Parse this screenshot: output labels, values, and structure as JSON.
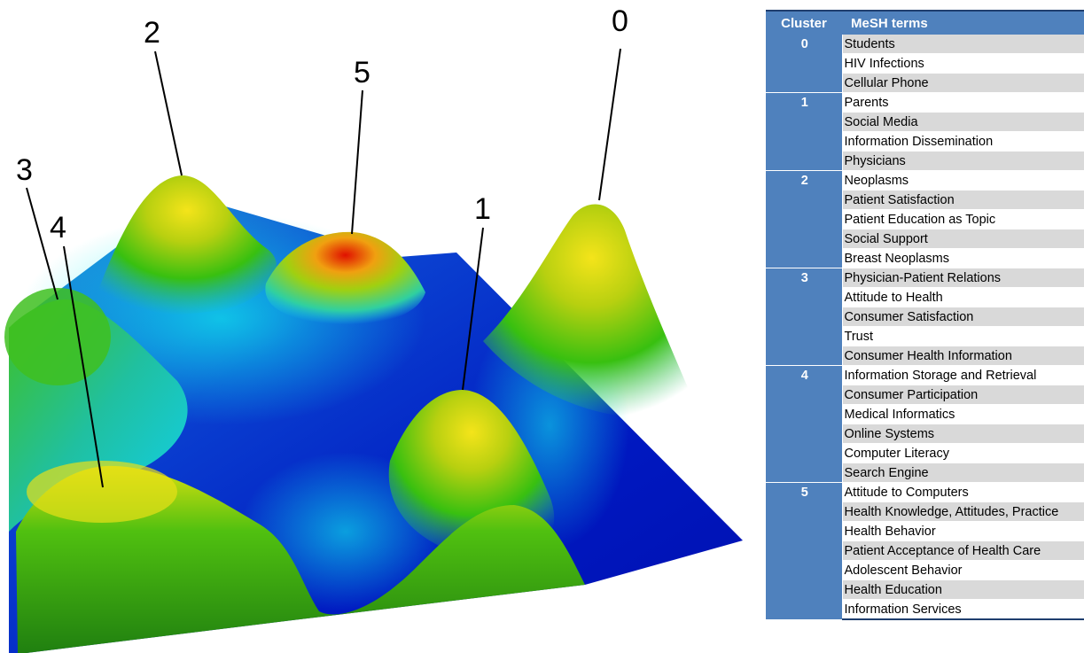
{
  "peak_labels": [
    "0",
    "1",
    "2",
    "3",
    "4",
    "5"
  ],
  "table": {
    "headers": {
      "cluster": "Cluster",
      "terms": "MeSH terms"
    },
    "clusters": [
      {
        "id": "0",
        "terms": [
          "Students",
          "HIV Infections",
          "Cellular Phone"
        ]
      },
      {
        "id": "1",
        "terms": [
          "Parents",
          "Social Media",
          "Information Dissemination",
          "Physicians"
        ]
      },
      {
        "id": "2",
        "terms": [
          "Neoplasms",
          "Patient Satisfaction",
          "Patient Education as Topic",
          "Social Support",
          "Breast Neoplasms"
        ]
      },
      {
        "id": "3",
        "terms": [
          "Physician-Patient Relations",
          "Attitude to Health",
          "Consumer Satisfaction",
          "Trust",
          "Consumer Health Information"
        ]
      },
      {
        "id": "4",
        "terms": [
          "Information Storage and Retrieval",
          "Consumer Participation",
          "Medical Informatics",
          "Online Systems",
          "Computer Literacy",
          "Search Engine"
        ]
      },
      {
        "id": "5",
        "terms": [
          "Attitude to Computers",
          "Health Knowledge, Attitudes, Practice",
          "Health Behavior",
          "Patient Acceptance of Health Care",
          "Adolescent Behavior",
          "Health Education",
          "Information Services"
        ]
      }
    ]
  },
  "colors": {
    "header_blue": "#4f81bd",
    "row_gray": "#d9d9d9",
    "surface_low": "#0010c0",
    "surface_mid": "#10e0f0",
    "surface_green": "#30c010",
    "surface_peak": "#f0e010",
    "surface_top": "#e01000"
  }
}
